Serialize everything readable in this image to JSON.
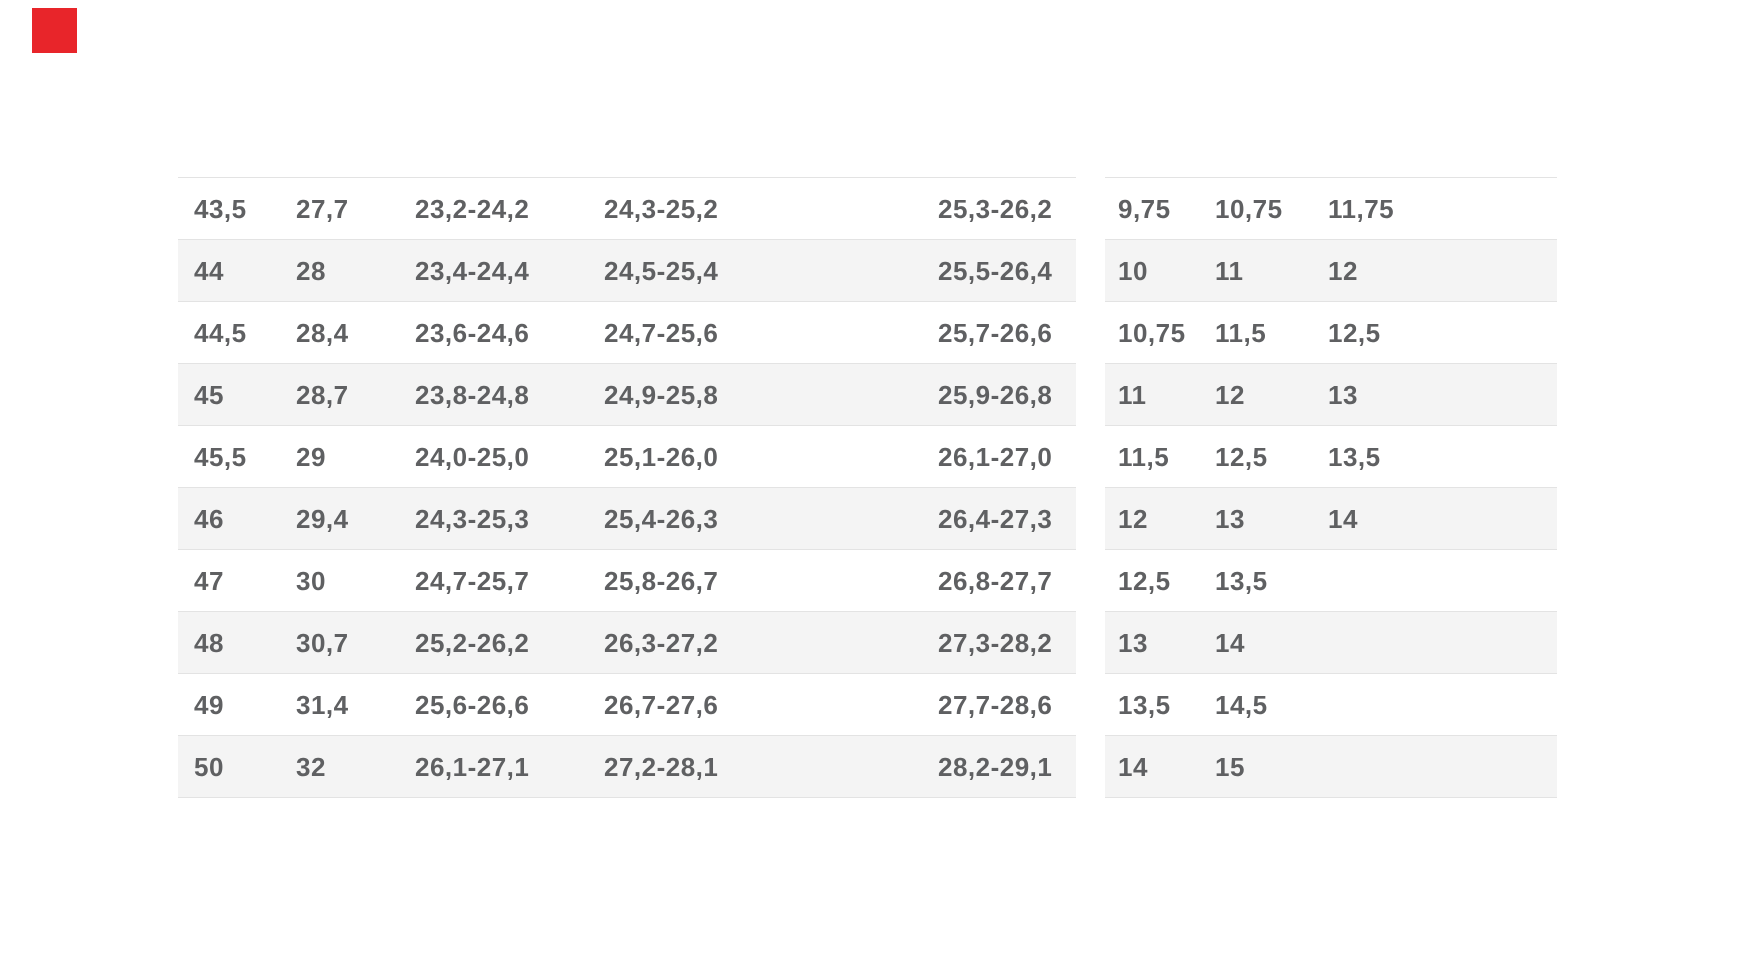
{
  "page": {
    "background_color": "#ffffff",
    "marker_color": "#e8252a",
    "row_alt_color": "#f4f4f4",
    "border_color": "#e3e3e3",
    "text_color": "#5f6062"
  },
  "size_chart": {
    "left_table": {
      "rows": [
        [
          "43,5",
          "27,7",
          "23,2-24,2",
          "24,3-25,2",
          "25,3-26,2"
        ],
        [
          "44",
          "28",
          "23,4-24,4",
          "24,5-25,4",
          "25,5-26,4"
        ],
        [
          "44,5",
          "28,4",
          "23,6-24,6",
          "24,7-25,6",
          "25,7-26,6"
        ],
        [
          "45",
          "28,7",
          "23,8-24,8",
          "24,9-25,8",
          "25,9-26,8"
        ],
        [
          "45,5",
          "29",
          "24,0-25,0",
          "25,1-26,0",
          "26,1-27,0"
        ],
        [
          "46",
          "29,4",
          "24,3-25,3",
          "25,4-26,3",
          "26,4-27,3"
        ],
        [
          "47",
          "30",
          "24,7-25,7",
          "25,8-26,7",
          "26,8-27,7"
        ],
        [
          "48",
          "30,7",
          "25,2-26,2",
          "26,3-27,2",
          "27,3-28,2"
        ],
        [
          "49",
          "31,4",
          "25,6-26,6",
          "26,7-27,6",
          "27,7-28,6"
        ],
        [
          "50",
          "32",
          "26,1-27,1",
          "27,2-28,1",
          "28,2-29,1"
        ]
      ]
    },
    "right_table": {
      "rows": [
        [
          "9,75",
          "10,75",
          "11,75"
        ],
        [
          "10",
          "11",
          "12"
        ],
        [
          "10,75",
          "11,5",
          "12,5"
        ],
        [
          "11",
          "12",
          "13"
        ],
        [
          "11,5",
          "12,5",
          "13,5"
        ],
        [
          "12",
          "13",
          "14"
        ],
        [
          "12,5",
          "13,5",
          ""
        ],
        [
          "13",
          "14",
          ""
        ],
        [
          "13,5",
          "14,5",
          ""
        ],
        [
          "14",
          "15",
          ""
        ]
      ]
    }
  }
}
